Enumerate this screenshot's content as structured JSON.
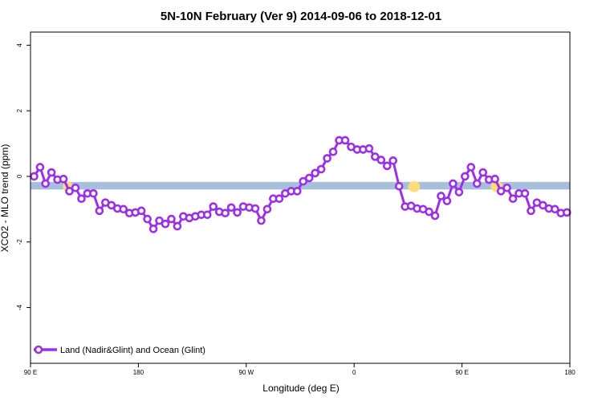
{
  "chart_data": {
    "type": "line",
    "title": "5N-10N February (Ver 9)   2014-09-06 to 2018-12-01",
    "xlabel": "Longitude (deg E)",
    "ylabel": "XCO2 - MLO trend (ppm)",
    "xlim": [
      90,
      540
    ],
    "ylim": [
      -5.7,
      4.4
    ],
    "x_ticks": [
      {
        "value": 90,
        "label": "90 E"
      },
      {
        "value": 180,
        "label": "180"
      },
      {
        "value": 270,
        "label": "90 W"
      },
      {
        "value": 360,
        "label": "0"
      },
      {
        "value": 450,
        "label": "90 E"
      },
      {
        "value": 540,
        "label": "180"
      }
    ],
    "y_ticks": [
      {
        "value": 4,
        "label": "4"
      },
      {
        "value": 2,
        "label": "2"
      },
      {
        "value": 0,
        "label": "0"
      },
      {
        "value": -2,
        "label": "-2"
      },
      {
        "value": -4,
        "label": "-4"
      }
    ],
    "grid": false,
    "legend_position": "bottom-left",
    "map_strip": {
      "y_range": [
        -0.4,
        -0.17
      ],
      "ocean_color": "#a8bfdc",
      "land_color": "#fedc7a",
      "land_segments": [
        [
          117,
          125
        ],
        [
          118,
          122
        ],
        [
          405,
          415
        ],
        [
          407,
          412
        ],
        [
          474,
          484
        ],
        [
          475,
          481
        ]
      ]
    },
    "series": [
      {
        "name": "Land (Nadir&Glint) and Ocean (Glint)",
        "color": "#9b30e6",
        "x": [
          93.0,
          98.0,
          102.5,
          107.5,
          112.5,
          117.5,
          122.5,
          127.5,
          132.5,
          137.5,
          142.5,
          147.5,
          152.5,
          157.5,
          162.5,
          167.5,
          172.5,
          177.5,
          182.5,
          187.5,
          192.5,
          197.5,
          202.5,
          207.5,
          212.5,
          217.5,
          222.5,
          227.5,
          232.5,
          237.5,
          242.5,
          247.5,
          252.5,
          257.5,
          262.5,
          267.5,
          272.5,
          277.5,
          282.5,
          287.5,
          292.5,
          297.5,
          302.5,
          307.5,
          312.5,
          317.5,
          322.5,
          327.5,
          332.5,
          337.5,
          342.5,
          347.5,
          352.5,
          357.5,
          362.5,
          367.5,
          372.5,
          377.5,
          382.5,
          387.5,
          392.5,
          397.5,
          402.5,
          407.5,
          412.5,
          417.5,
          422.5,
          427.5,
          432.5,
          437.5,
          442.5,
          447.5,
          452.5,
          457.5,
          462.5,
          467.5,
          472.5,
          477.5,
          482.5,
          487.5,
          492.5,
          497.5,
          502.5,
          507.5,
          512.5,
          517.5,
          522.5,
          527.5,
          532.5,
          537.5
        ],
        "y": [
          0.0,
          0.28,
          -0.22,
          0.12,
          -0.1,
          -0.08,
          -0.45,
          -0.35,
          -0.68,
          -0.52,
          -0.52,
          -1.05,
          -0.8,
          -0.88,
          -0.98,
          -1.0,
          -1.12,
          -1.1,
          -1.05,
          -1.3,
          -1.6,
          -1.35,
          -1.45,
          -1.3,
          -1.52,
          -1.22,
          -1.27,
          -1.22,
          -1.17,
          -1.17,
          -0.92,
          -1.08,
          -1.12,
          -0.95,
          -1.1,
          -0.92,
          -0.95,
          -0.98,
          -1.35,
          -1.0,
          -0.68,
          -0.68,
          -0.52,
          -0.45,
          -0.45,
          -0.15,
          -0.05,
          0.1,
          0.22,
          0.55,
          0.75,
          1.1,
          1.1,
          0.9,
          0.82,
          0.82,
          0.85,
          0.6,
          0.5,
          0.32,
          0.48,
          -0.3,
          -0.92,
          -0.9,
          -0.98,
          -1.0,
          -1.08,
          -1.2,
          -0.6,
          -0.75,
          -0.22,
          -0.48,
          0.0,
          0.28,
          -0.22,
          0.12,
          -0.1,
          -0.08,
          -0.45,
          -0.35,
          -0.68,
          -0.52,
          -0.52,
          -1.05,
          -0.8,
          -0.88,
          -0.98,
          -1.0,
          -1.12,
          -1.1
        ]
      }
    ]
  }
}
